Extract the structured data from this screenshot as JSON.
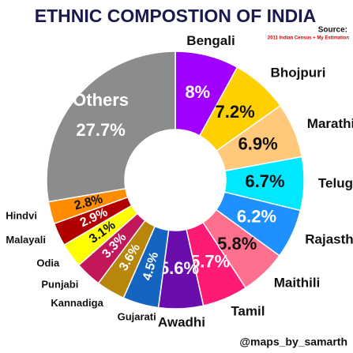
{
  "chart_data": {
    "type": "pie",
    "title": "ETHNIC COMPOSTION OF INDIA",
    "source_label": "Source:",
    "source": "2011 Indian Census + My Estimation",
    "credit": "@maps_by_samarth",
    "categories": [
      "Bengali",
      "Bhojpuri",
      "Marathi",
      "Telugu",
      "Rajasthani",
      "Maithili",
      "Tamil",
      "Awadhi",
      "Gujarati",
      "Kannadiga",
      "Punjabi",
      "Odia",
      "Malayali",
      "Hindvi",
      "Others"
    ],
    "values": [
      8,
      7.2,
      6.9,
      6.7,
      6.2,
      5.8,
      5.7,
      5.6,
      4.5,
      3.6,
      3.3,
      3.1,
      2.9,
      2.8,
      27.7
    ],
    "value_labels": [
      "8%",
      "7.2%",
      "6.9%",
      "6.7%",
      "6.2%",
      "5.8%",
      "5.7%",
      "5.6%",
      "4.5%",
      "3.6%",
      "3.3%",
      "3.1%",
      "2.9%",
      "2.8%",
      "27.7%"
    ],
    "colors": [
      "#a100ff",
      "#ffd000",
      "#ffc87a",
      "#00e8ff",
      "#1e90ff",
      "#ff6f8e",
      "#ff1a75",
      "#6a0dad",
      "#1565c0",
      "#b8860b",
      "#c2185b",
      "#ffff00",
      "#b00000",
      "#ff8c00",
      "#8c8c8c"
    ]
  }
}
